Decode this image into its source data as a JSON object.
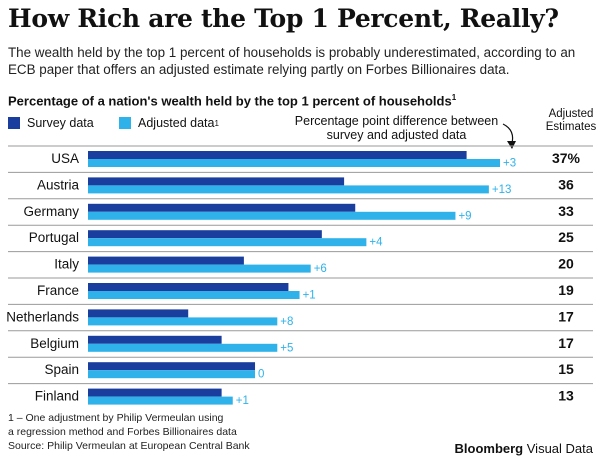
{
  "title": "How Rich are the Top 1 Percent, Really?",
  "subtitle": "The wealth held by the top 1 percent of households is probably underestimated, according to an ECB paper that offers an adjusted estimate relying partly on Forbes Billionaires data.",
  "footnote": {
    "line1": "1 – One adjustment by Philip Vermeulan using",
    "line2": "a regression method and Forbes Billionaires data",
    "source": "Source: Philip Vermeulan at European Central Bank"
  },
  "brand": {
    "name": "Bloomberg",
    "suffix": "Visual Data"
  },
  "colors": {
    "survey": "#1a3e9e",
    "adjusted": "#2fb2ea",
    "diff_text": "#2fb2ea",
    "rule": "#9a9a9a"
  },
  "chart_data": {
    "type": "bar",
    "orientation": "horizontal",
    "title": "Percentage of a nation's wealth held by the top 1 percent of households",
    "title_sup": "1",
    "legend": {
      "survey": "Survey data",
      "adjusted": "Adjusted data",
      "adjusted_sup": "1"
    },
    "diff_annotation": "Percentage point difference between survey and adjusted data",
    "adjusted_header": "Adjusted Estimates",
    "categories": [
      "USA",
      "Austria",
      "Germany",
      "Portugal",
      "Italy",
      "France",
      "Netherlands",
      "Belgium",
      "Spain",
      "Finland"
    ],
    "series": [
      {
        "name": "Survey data",
        "values": [
          34,
          23,
          24,
          21,
          14,
          18,
          9,
          12,
          15,
          12
        ]
      },
      {
        "name": "Adjusted data",
        "values": [
          37,
          36,
          33,
          25,
          20,
          19,
          17,
          17,
          15,
          13
        ]
      }
    ],
    "diff_labels": [
      "+3",
      "+13",
      "+9",
      "+4",
      "+6",
      "+1",
      "+8",
      "+5",
      "0",
      "+1"
    ],
    "adjusted_labels": [
      "37%",
      "36",
      "33",
      "25",
      "20",
      "19",
      "17",
      "17",
      "15",
      "13"
    ],
    "xlim": [
      0,
      37
    ]
  }
}
